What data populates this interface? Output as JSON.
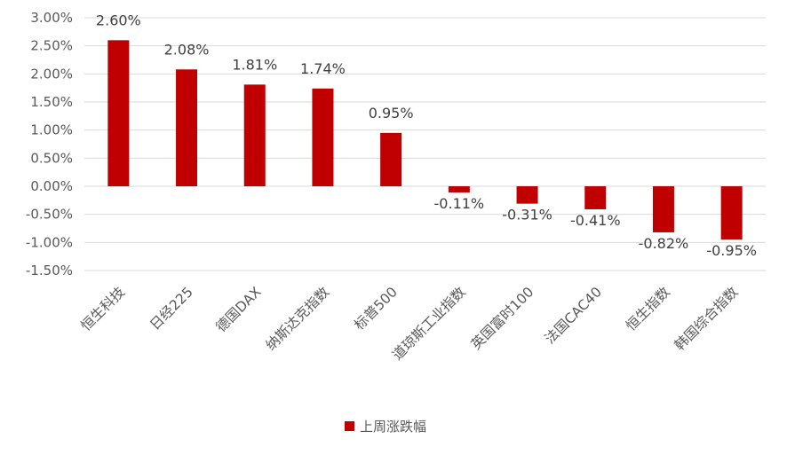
{
  "chart_data": {
    "type": "bar",
    "categories": [
      "恒生科技",
      "日经225",
      "德国DAX",
      "纳斯达克指数",
      "标普500",
      "道琼斯工业指数",
      "英国富时100",
      "法国CAC40",
      "恒生指数",
      "韩国综合指数"
    ],
    "series": [
      {
        "name": "上周涨跌幅",
        "values": [
          2.6,
          2.08,
          1.81,
          1.74,
          0.95,
          -0.11,
          -0.31,
          -0.41,
          -0.82,
          -0.95
        ],
        "data_labels": [
          "2.60%",
          "2.08%",
          "1.81%",
          "1.74%",
          "0.95%",
          "-0.11%",
          "-0.31%",
          "-0.41%",
          "-0.82%",
          "-0.95%"
        ],
        "color": "#c00000"
      }
    ],
    "y_ticks": [
      "3.00%",
      "2.50%",
      "2.00%",
      "1.50%",
      "1.00%",
      "0.50%",
      "0.00%",
      "-0.50%",
      "-1.00%",
      "-1.50%"
    ],
    "ylim": [
      -1.5,
      3.0
    ],
    "grid": true,
    "legend_position": "bottom",
    "title": "",
    "xlabel": "",
    "ylabel": ""
  }
}
